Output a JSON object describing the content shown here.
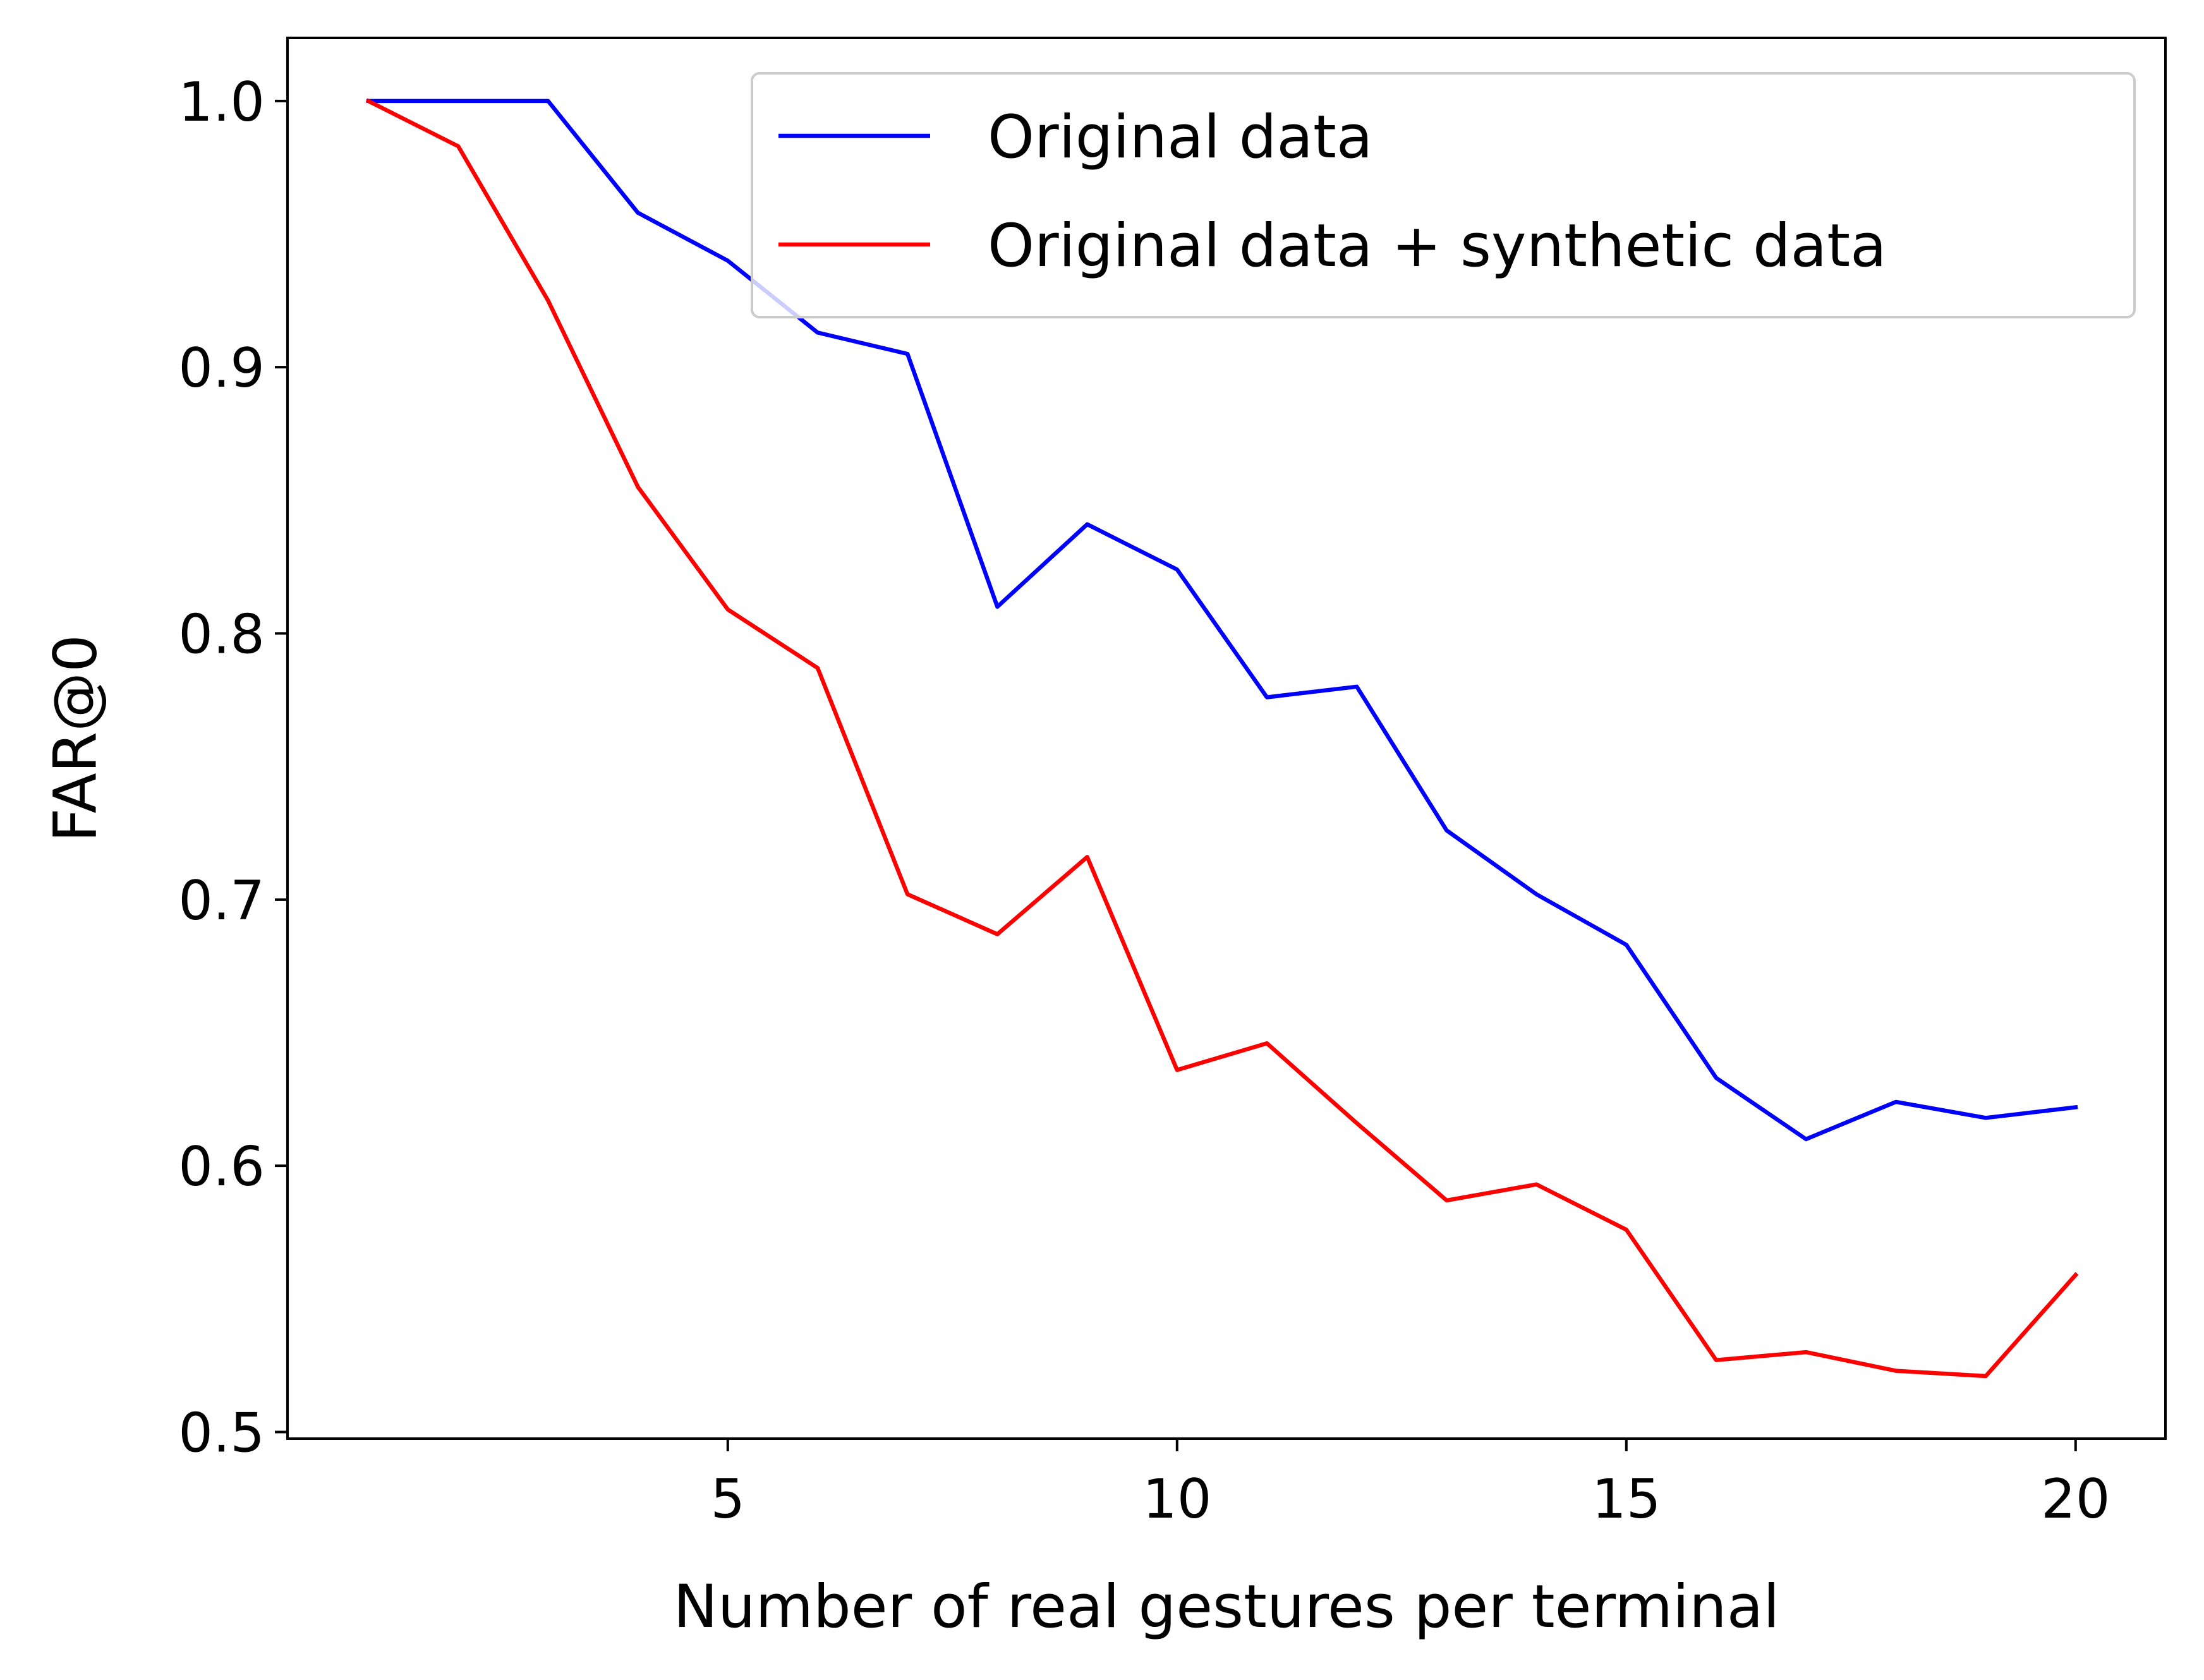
{
  "chart_data": {
    "type": "line",
    "title": "",
    "xlabel": "Number of real gestures per terminal",
    "ylabel": "FAR@0",
    "xlim": [
      0.1,
      21.0
    ],
    "ylim": [
      0.4975,
      1.0237
    ],
    "xticks": [
      5,
      10,
      15,
      20
    ],
    "xtick_labels": [
      "5",
      "10",
      "15",
      "20"
    ],
    "yticks": [
      0.5,
      0.6,
      0.7,
      0.8,
      0.9,
      1.0
    ],
    "ytick_labels": [
      "0.5",
      "0.6",
      "0.7",
      "0.8",
      "0.9",
      "1.0"
    ],
    "grid": false,
    "legend_position": "top-right",
    "x": [
      1,
      2,
      3,
      4,
      5,
      6,
      7,
      8,
      9,
      10,
      11,
      12,
      13,
      14,
      15,
      16,
      17,
      18,
      19,
      20
    ],
    "series": [
      {
        "name": "Original data",
        "color": "#0000ff",
        "values": [
          1.0,
          1.0,
          1.0,
          0.958,
          0.94,
          0.913,
          0.905,
          0.81,
          0.841,
          0.824,
          0.776,
          0.78,
          0.726,
          0.702,
          0.683,
          0.633,
          0.61,
          0.624,
          0.618,
          0.622
        ]
      },
      {
        "name": "Original data + synthetic data",
        "color": "#ff0000",
        "values": [
          1.0,
          0.983,
          0.925,
          0.855,
          0.809,
          0.787,
          0.702,
          0.687,
          0.716,
          0.636,
          0.646,
          0.616,
          0.587,
          0.593,
          0.576,
          0.527,
          0.53,
          0.523,
          0.521,
          0.559
        ]
      }
    ]
  }
}
